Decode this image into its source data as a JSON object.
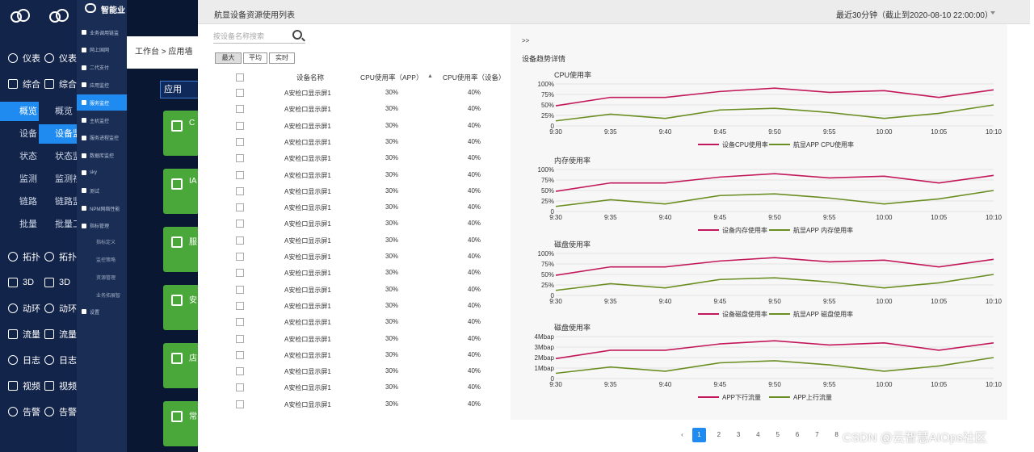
{
  "nav1": {
    "items": [
      {
        "label": "仪表",
        "icon": "dashboard-icon"
      },
      {
        "label": "综合",
        "icon": "overview-icon"
      },
      {
        "label": "拓扑",
        "icon": "topology-icon"
      },
      {
        "label": "3D",
        "icon": "3d-icon"
      },
      {
        "label": "动环",
        "icon": "env-icon"
      },
      {
        "label": "流量",
        "icon": "flow-icon"
      },
      {
        "label": "日志",
        "icon": "log-icon"
      },
      {
        "label": "视频",
        "icon": "video-icon"
      },
      {
        "label": "告警",
        "icon": "alarm-icon"
      }
    ],
    "subitems": [
      "概览",
      "设备",
      "状态",
      "监测",
      "链路",
      "批量"
    ],
    "subitems2": [
      "概览",
      "设备监",
      "状态监",
      "监测社",
      "链路监",
      "批量工"
    ]
  },
  "nav3": {
    "brand": "智能业",
    "items": [
      "业务调用链监",
      "网上国网",
      "二代支付",
      "应用监控",
      "服务监控",
      "主机监控",
      "服务进程监控",
      "数据库监控",
      "sky",
      "测试",
      "NPM网络性能",
      "指标管理"
    ],
    "subitems": [
      "指标定义",
      "监控策略",
      "资源管理",
      "业务拓展智"
    ],
    "settings": "设置"
  },
  "mid": {
    "breadcrumb": "工作台 > 应用墙",
    "app_button": "应用",
    "cards": [
      "C",
      "IA",
      "服",
      "安",
      "店",
      "常"
    ]
  },
  "header": {
    "title": "航显设备资源使用列表",
    "range": "最近30分钟（截止到2020-08-10 22:00:00）"
  },
  "search": {
    "placeholder": "按设备名称搜索"
  },
  "tabs": [
    "最大",
    "平均",
    "实时"
  ],
  "table": {
    "headers": [
      "设备名称",
      "CPU使用率（APP）",
      "CPU使用率（设备）"
    ],
    "rows": [
      [
        "A安检口显示屏1",
        "30%",
        "40%"
      ],
      [
        "A安检口显示屏1",
        "30%",
        "40%"
      ],
      [
        "A安检口显示屏1",
        "30%",
        "40%"
      ],
      [
        "A安检口显示屏1",
        "30%",
        "40%"
      ],
      [
        "A安检口显示屏1",
        "30%",
        "40%"
      ],
      [
        "A安检口显示屏1",
        "30%",
        "40%"
      ],
      [
        "A安检口显示屏1",
        "30%",
        "40%"
      ],
      [
        "A安检口显示屏1",
        "30%",
        "40%"
      ],
      [
        "A安检口显示屏1",
        "30%",
        "40%"
      ],
      [
        "A安检口显示屏1",
        "30%",
        "40%"
      ],
      [
        "A安检口显示屏1",
        "30%",
        "40%"
      ],
      [
        "A安检口显示屏1",
        "30%",
        "40%"
      ],
      [
        "A安检口显示屏1",
        "30%",
        "40%"
      ],
      [
        "A安检口显示屏1",
        "30%",
        "40%"
      ],
      [
        "A安检口显示屏1",
        "30%",
        "40%"
      ],
      [
        "A安检口显示屏1",
        "30%",
        "40%"
      ],
      [
        "A安检口显示屏1",
        "30%",
        "40%"
      ],
      [
        "A安检口显示屏1",
        "30%",
        "40%"
      ],
      [
        "A安检口显示屏1",
        "30%",
        "40%"
      ],
      [
        "A安检口显示屏1",
        "30%",
        "40%"
      ]
    ]
  },
  "trend": {
    "collapse": ">>",
    "title": "设备趋势详情"
  },
  "chart_data": [
    {
      "type": "line",
      "title": "CPU使用率",
      "x": [
        "9:30",
        "9:35",
        "9:40",
        "9:45",
        "9:50",
        "9:55",
        "10:00",
        "10:05",
        "10:10"
      ],
      "yticks": [
        "0",
        "25%",
        "50%",
        "75%",
        "100%"
      ],
      "ylim": [
        0,
        100
      ],
      "series": [
        {
          "name": "设备CPU使用率",
          "color": "#c2185b",
          "values": [
            48,
            68,
            68,
            82,
            90,
            80,
            84,
            68,
            86
          ]
        },
        {
          "name": "航显APP CPU使用率",
          "color": "#6b8e23",
          "values": [
            12,
            28,
            18,
            38,
            42,
            32,
            18,
            30,
            50
          ]
        }
      ]
    },
    {
      "type": "line",
      "title": "内存使用率",
      "x": [
        "9:30",
        "9:35",
        "9:40",
        "9:45",
        "9:50",
        "9:55",
        "10:00",
        "10:05",
        "10:10"
      ],
      "yticks": [
        "0",
        "25%",
        "50%",
        "75%",
        "100%"
      ],
      "ylim": [
        0,
        100
      ],
      "series": [
        {
          "name": "设备内存使用率",
          "color": "#c2185b",
          "values": [
            48,
            68,
            68,
            82,
            90,
            80,
            84,
            68,
            86
          ]
        },
        {
          "name": "航显APP 内存使用率",
          "color": "#6b8e23",
          "values": [
            12,
            28,
            18,
            38,
            42,
            32,
            18,
            30,
            50
          ]
        }
      ]
    },
    {
      "type": "line",
      "title": "磁盘使用率",
      "x": [
        "9:30",
        "9:35",
        "9:40",
        "9:45",
        "9:50",
        "9:55",
        "10:00",
        "10:05",
        "10:10"
      ],
      "yticks": [
        "0",
        "25%",
        "50%",
        "75%",
        "100%"
      ],
      "ylim": [
        0,
        100
      ],
      "series": [
        {
          "name": "设备磁盘使用率",
          "color": "#c2185b",
          "values": [
            48,
            68,
            68,
            82,
            90,
            80,
            84,
            68,
            86
          ]
        },
        {
          "name": "航显APP 磁盘使用率",
          "color": "#6b8e23",
          "values": [
            12,
            28,
            18,
            38,
            42,
            32,
            18,
            30,
            50
          ]
        }
      ]
    },
    {
      "type": "line",
      "title": "磁盘使用率",
      "x": [
        "9:30",
        "9:35",
        "9:40",
        "9:45",
        "9:50",
        "9:55",
        "10:00",
        "10:05",
        "10:10"
      ],
      "yticks": [
        "0",
        "1Mbap",
        "2Mbap",
        "3Mbap",
        "4Mbap"
      ],
      "ylim": [
        0,
        4
      ],
      "series": [
        {
          "name": "APP下行流量",
          "color": "#c2185b",
          "values": [
            1.9,
            2.7,
            2.7,
            3.3,
            3.6,
            3.2,
            3.4,
            2.7,
            3.4
          ]
        },
        {
          "name": "APP上行流量",
          "color": "#6b8e23",
          "values": [
            0.5,
            1.1,
            0.7,
            1.5,
            1.7,
            1.3,
            0.7,
            1.2,
            2.0
          ]
        }
      ]
    }
  ],
  "pagination": [
    "1",
    "2",
    "3",
    "4",
    "5",
    "6",
    "7",
    "8"
  ],
  "watermark": "CSDN @云智慧AIOps社区",
  "colors": {
    "nav": "#13244a",
    "accent": "#1f8bf0",
    "card": "#4aa83a"
  }
}
